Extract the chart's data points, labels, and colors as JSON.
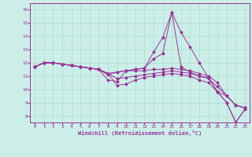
{
  "xlabel": "Windchill (Refroidissement éolien,°C)",
  "background_color": "#cceee8",
  "line_color": "#993399",
  "grid_color": "#aaddcc",
  "xlim": [
    -0.5,
    23.5
  ],
  "ylim": [
    7.5,
    16.5
  ],
  "xticks": [
    0,
    1,
    2,
    3,
    4,
    5,
    6,
    7,
    8,
    9,
    10,
    11,
    12,
    13,
    14,
    15,
    16,
    17,
    18,
    19,
    20,
    21,
    22,
    23
  ],
  "yticks": [
    8,
    9,
    10,
    11,
    12,
    13,
    14,
    15,
    16
  ],
  "lines": [
    [
      11.7,
      12.0,
      12.0,
      11.9,
      11.8,
      11.7,
      11.6,
      11.5,
      10.7,
      10.6,
      11.4,
      11.5,
      11.6,
      12.8,
      13.9,
      15.8,
      14.3,
      13.2,
      12.0,
      10.9,
      9.8,
      9.0,
      7.5,
      8.5
    ],
    [
      11.7,
      12.0,
      12.0,
      11.9,
      11.8,
      11.7,
      11.6,
      11.5,
      11.1,
      11.3,
      11.4,
      11.5,
      11.6,
      12.3,
      12.7,
      15.8,
      11.7,
      11.3,
      11.0,
      10.9,
      9.8,
      9.0,
      7.5,
      8.5
    ],
    [
      11.7,
      12.0,
      12.0,
      11.9,
      11.8,
      11.7,
      11.6,
      11.5,
      11.2,
      11.3,
      11.4,
      11.4,
      11.4,
      11.5,
      11.5,
      11.6,
      11.5,
      11.4,
      11.2,
      11.0,
      10.5,
      9.5,
      8.8,
      8.6
    ],
    [
      11.7,
      12.0,
      12.0,
      11.9,
      11.8,
      11.7,
      11.6,
      11.5,
      11.2,
      10.8,
      10.9,
      11.0,
      11.1,
      11.2,
      11.3,
      11.4,
      11.3,
      11.2,
      11.0,
      10.8,
      10.2,
      9.5,
      8.8,
      8.6
    ],
    [
      11.7,
      12.0,
      12.0,
      11.9,
      11.8,
      11.7,
      11.6,
      11.5,
      11.2,
      10.3,
      10.4,
      10.7,
      10.9,
      11.0,
      11.1,
      11.2,
      11.1,
      11.0,
      10.7,
      10.5,
      9.8,
      9.5,
      8.8,
      8.6
    ]
  ]
}
